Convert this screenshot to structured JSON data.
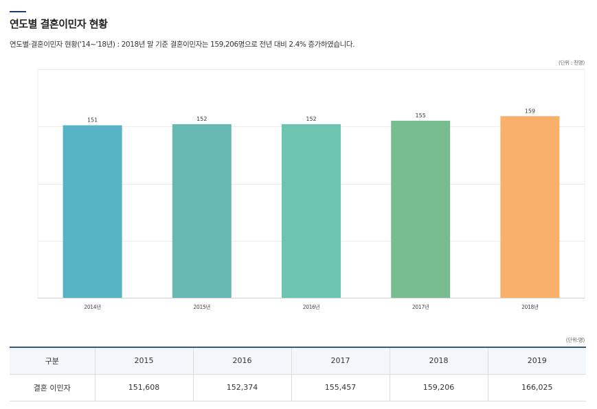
{
  "page": {
    "title": "연도별 결혼이민자 현황",
    "description": "연도별·결혼이민자 현황('14~'18년) : 2018년 말 기준 결혼이민자는 159,206명으로 전년 대비 2.4% 증가하였습니다.",
    "chart_unit": "(단위 : 천명)",
    "table_unit": "(단위:명)"
  },
  "chart_data": {
    "type": "bar",
    "title": "연도별 결혼이민자 현황",
    "xlabel": "",
    "ylabel": "",
    "categories": [
      "2014년",
      "2015년",
      "2016년",
      "2017년",
      "2018년"
    ],
    "values": [
      151,
      152,
      152,
      155,
      159
    ],
    "value_labels": [
      "151",
      "152",
      "152",
      "155",
      "159"
    ],
    "colors": [
      "#56b3c3",
      "#68b9b4",
      "#6cc4b1",
      "#78bd8f",
      "#f9b06b"
    ],
    "ylim": [
      0,
      200
    ],
    "grid": true,
    "grid_lines": [
      50,
      100,
      150,
      200
    ]
  },
  "table": {
    "header_label": "구분",
    "years": [
      "2015",
      "2016",
      "2017",
      "2018",
      "2019"
    ],
    "row_label": "결혼 이민자",
    "values": [
      "151,608",
      "152,374",
      "155,457",
      "159,206",
      "166,025"
    ]
  }
}
